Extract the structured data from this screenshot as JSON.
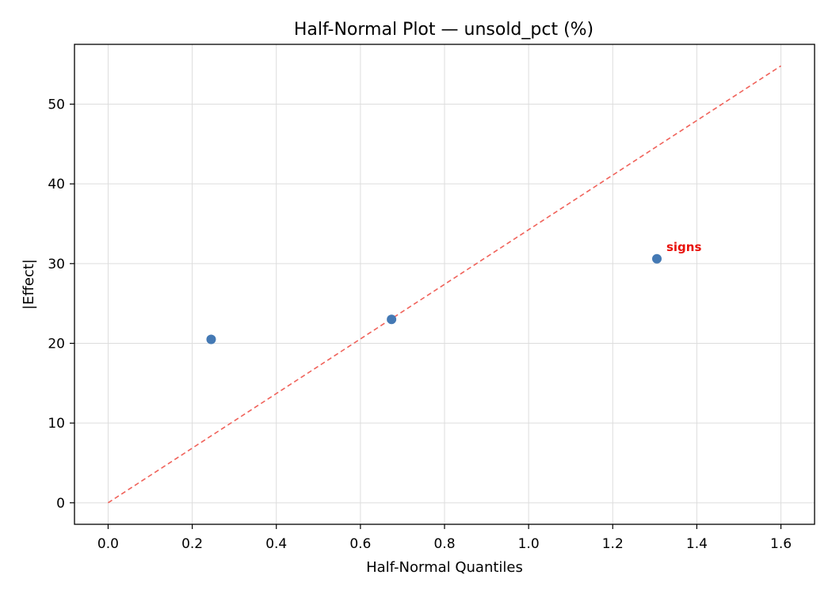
{
  "chart_data": {
    "type": "scatter",
    "title": "Half-Normal Plot — unsold_pct (%)",
    "xlabel": "Half-Normal Quantiles",
    "ylabel": "|Effect|",
    "xlim": [
      -0.08,
      1.68
    ],
    "ylim": [
      -2.7,
      57.5
    ],
    "xticks": [
      0.0,
      0.2,
      0.4,
      0.6,
      0.8,
      1.0,
      1.2,
      1.4,
      1.6
    ],
    "xtick_labels": [
      "0.0",
      "0.2",
      "0.4",
      "0.6",
      "0.8",
      "1.0",
      "1.2",
      "1.4",
      "1.6"
    ],
    "yticks": [
      0,
      10,
      20,
      30,
      40,
      50
    ],
    "ytick_labels": [
      "0",
      "10",
      "20",
      "30",
      "40",
      "50"
    ],
    "grid": true,
    "series": [
      {
        "points": [
          {
            "x": 0.245,
            "y": 20.5
          },
          {
            "x": 0.674,
            "y": 23.0
          },
          {
            "x": 1.305,
            "y": 30.6
          }
        ],
        "color": "#4479b4"
      }
    ],
    "reference_line": {
      "x": [
        0.0,
        1.6
      ],
      "y": [
        0.0,
        54.8
      ],
      "style": "dashed",
      "color": "#f0625a"
    },
    "annotations": [
      {
        "text": "signs",
        "x": 1.305,
        "y": 30.6,
        "color": "#e8120c"
      }
    ]
  }
}
